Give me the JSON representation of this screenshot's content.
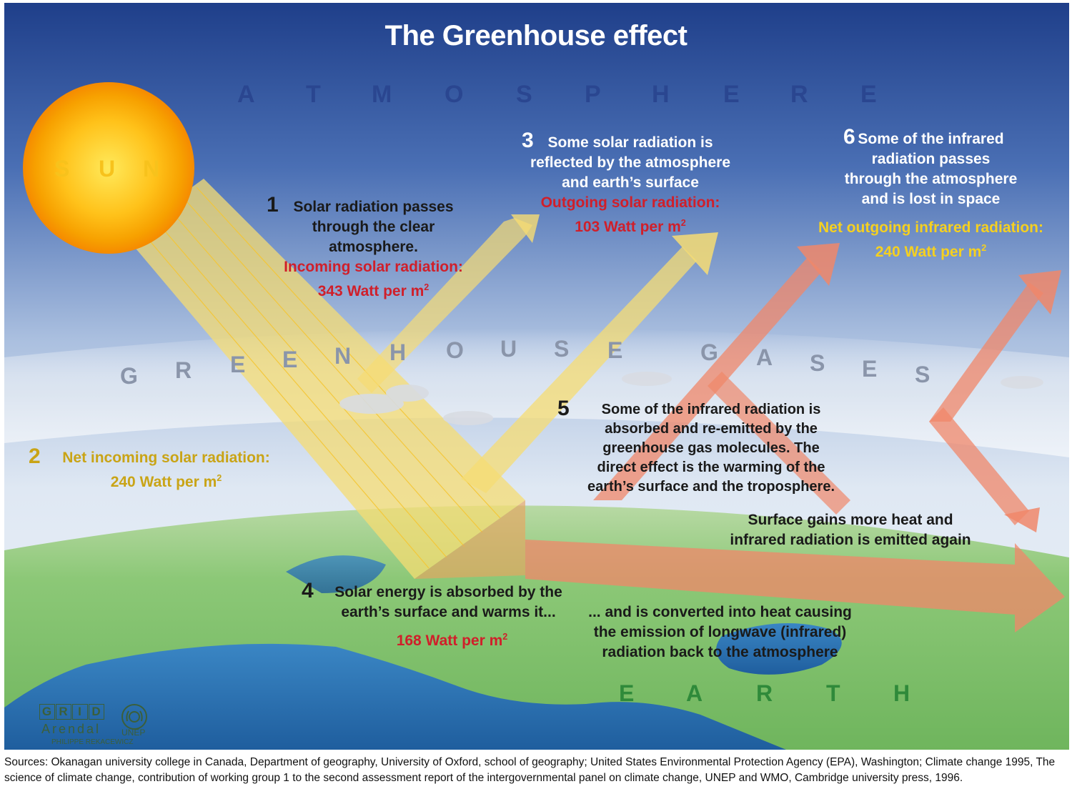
{
  "title": "The Greenhouse effect",
  "layers": {
    "atmosphere": [
      "A",
      "T",
      "M",
      "O",
      "S",
      "P",
      "H",
      "E",
      "R",
      "E"
    ],
    "greenhouse_gases": [
      "G",
      "R",
      "E",
      "E",
      "N",
      "H",
      "O",
      "U",
      "S",
      "E",
      "G",
      "A",
      "S",
      "E",
      "S"
    ],
    "sun": [
      "S",
      "U",
      "N"
    ],
    "earth": [
      "E",
      "A",
      "R",
      "T",
      "H"
    ]
  },
  "steps": {
    "s1": {
      "number": "1",
      "lines": [
        "Solar radiation passes",
        "through the clear",
        "atmosphere."
      ],
      "label": "Incoming solar radiation:",
      "value": "343 Watt per m",
      "unit_sup": "2"
    },
    "s2": {
      "number": "2",
      "label": "Net incoming solar radiation:",
      "value": "240 Watt per m",
      "unit_sup": "2"
    },
    "s3": {
      "number": "3",
      "lines": [
        "Some solar radiation is",
        "reflected by the atmosphere",
        "and earth’s surface"
      ],
      "label": "Outgoing solar radiation:",
      "value": "103 Watt per m",
      "unit_sup": "2"
    },
    "s4": {
      "number": "4",
      "lines": [
        "Solar energy is absorbed by the",
        "earth’s surface and warms it..."
      ],
      "value": "168 Watt per m",
      "unit_sup": "2"
    },
    "s4b": {
      "lines": [
        "... and is converted into heat causing",
        "the emission of longwave (infrared)",
        "radiation back to the atmosphere"
      ]
    },
    "s5": {
      "number": "5",
      "lines": [
        "Some of the infrared radiation is",
        "absorbed and re-emitted by the",
        "greenhouse gas molecules. The",
        "direct effect is the warming of the",
        "earth’s surface and the troposphere."
      ]
    },
    "s5b": {
      "lines": [
        "Surface gains more heat and",
        "infrared radiation is emitted again"
      ]
    },
    "s6": {
      "number": "6",
      "lines": [
        "Some of the infrared",
        "radiation passes",
        "through the atmosphere",
        "and is lost in space"
      ],
      "label": "Net outgoing infrared radiation:",
      "value": "240 Watt per m",
      "unit_sup": "2"
    }
  },
  "credits": {
    "grid_letters": [
      "G",
      "R",
      "I",
      "D"
    ],
    "arendal": "Arendal",
    "author": "PHILIPPE REKACEWICZ",
    "unep": "UNEP"
  },
  "sources": "Sources: Okanagan university college in Canada, Department of geography, University of Oxford, school of geography; United States Environmental Protection Agency (EPA), Washington; Climate change 1995, The science of climate change, contribution of working group 1 to the second assessment report of the intergovernmental panel on climate change, UNEP and WMO, Cambridge university press,  1996.",
  "colors": {
    "sky_top": "#1f3f8a",
    "sky_bottom": "#e6eef6",
    "sun": "#f7b800",
    "solar_beam": "#f6dc73",
    "infrared": "#f0876a",
    "label_red": "#d01f2a",
    "label_yellow": "#f5d020",
    "land": "#7cc36a",
    "sea": "#2a6fb0"
  }
}
